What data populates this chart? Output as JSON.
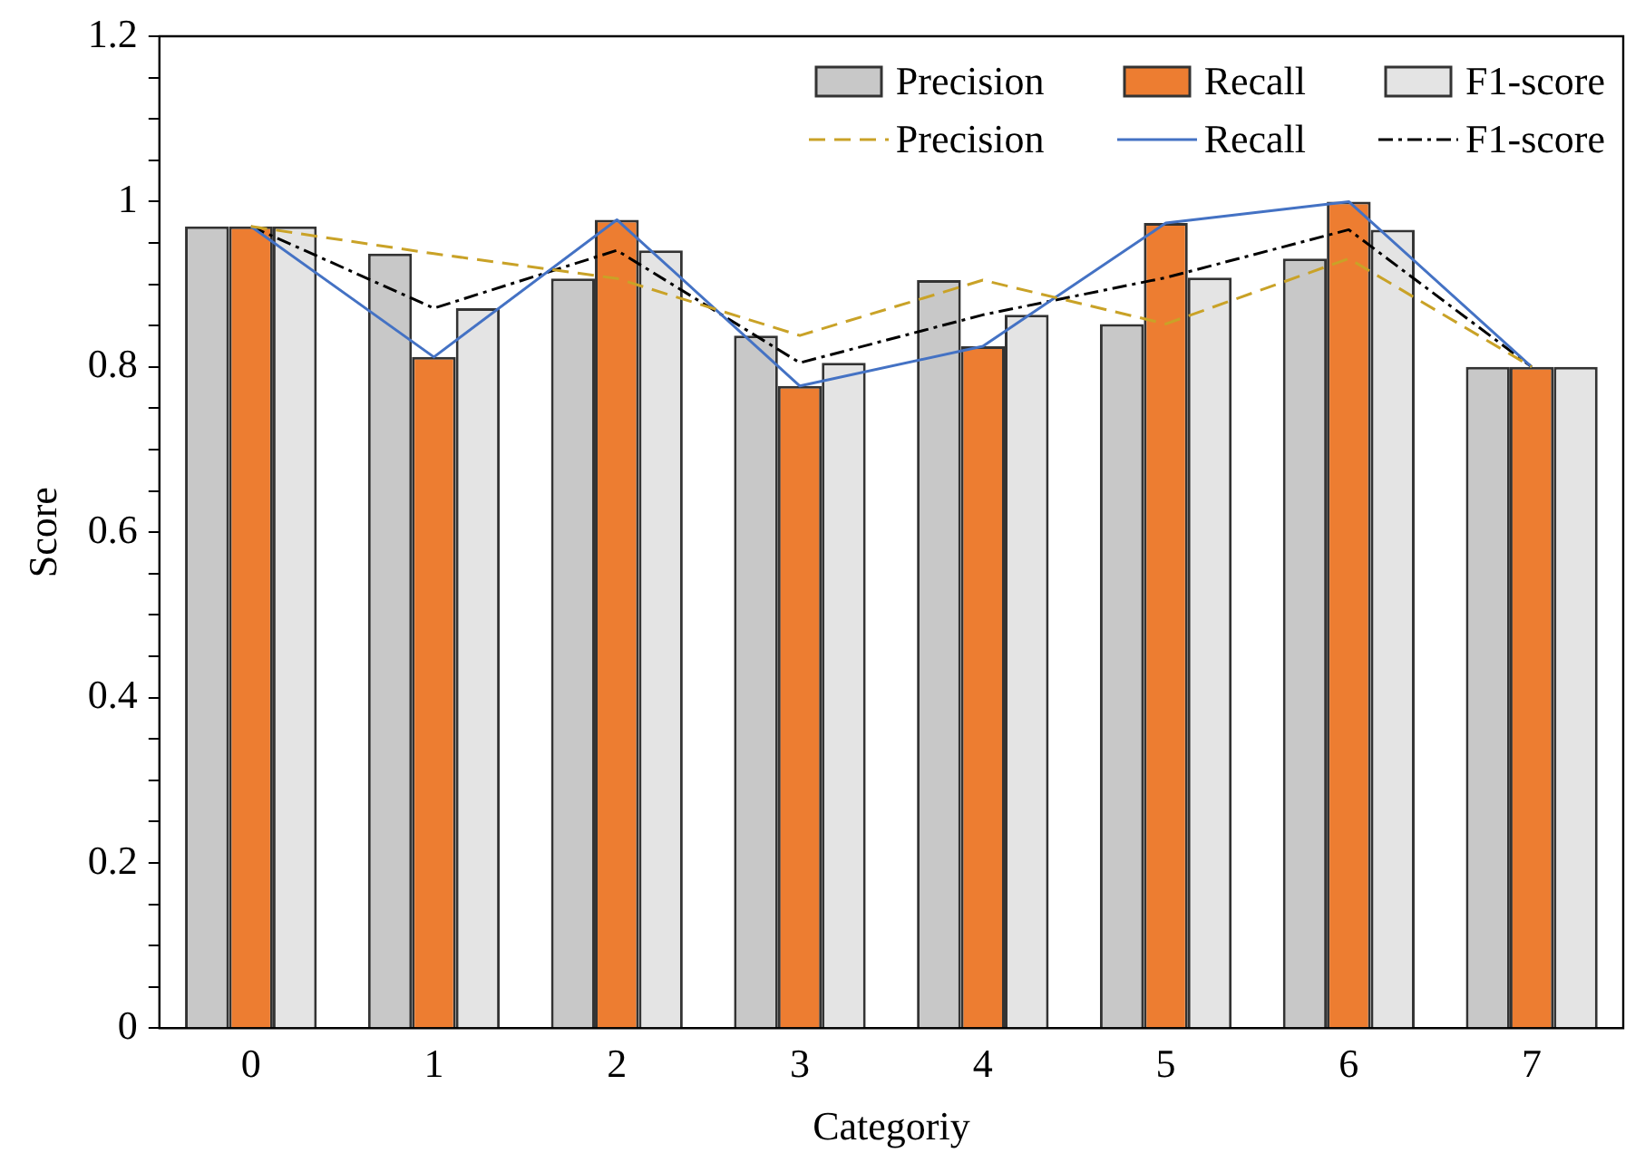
{
  "chart_data": {
    "type": "bar",
    "xlabel": "Categoriy",
    "ylabel": "Score",
    "categories": [
      "0",
      "1",
      "2",
      "3",
      "4",
      "5",
      "6",
      "7"
    ],
    "series": [
      {
        "name": "Precision",
        "color": "#c8c8c8",
        "values": [
          0.97,
          0.937,
          0.907,
          0.838,
          0.905,
          0.852,
          0.931,
          0.8
        ]
      },
      {
        "name": "Recall",
        "color": "#ed7d31",
        "values": [
          0.97,
          0.812,
          0.978,
          0.777,
          0.825,
          0.974,
          1.0,
          0.8
        ]
      },
      {
        "name": "F1-score",
        "color": "#e4e4e4",
        "values": [
          0.97,
          0.871,
          0.941,
          0.805,
          0.863,
          0.908,
          0.966,
          0.8
        ]
      },
      {
        "name": "Precision",
        "type": "line",
        "color": "#c9a227",
        "line_style": "dashed",
        "values": [
          0.97,
          0.937,
          0.907,
          0.838,
          0.905,
          0.852,
          0.931,
          0.8
        ]
      },
      {
        "name": "Recall",
        "type": "line",
        "color": "#4472c4",
        "line_style": "solid",
        "values": [
          0.97,
          0.812,
          0.978,
          0.777,
          0.825,
          0.974,
          1.0,
          0.8
        ]
      },
      {
        "name": "F1-score",
        "type": "line",
        "color": "#000000",
        "line_style": "dotted",
        "values": [
          0.97,
          0.871,
          0.941,
          0.805,
          0.863,
          0.908,
          0.966,
          0.8
        ]
      }
    ],
    "ylim": [
      0,
      1.2
    ],
    "yticks": [
      0,
      {
        "value": 0.05,
        "label": null
      },
      {
        "value": 0.1,
        "label": null
      },
      {
        "value": 0.15,
        "label": null
      },
      0.2,
      {
        "value": 0.25,
        "label": null
      },
      {
        "value": 0.3,
        "label": null
      },
      {
        "value": 0.35,
        "label": null
      },
      0.4,
      {
        "value": 0.45,
        "label": null
      },
      {
        "value": 0.5,
        "label": null
      },
      {
        "value": 0.55,
        "label": null
      },
      0.6,
      {
        "value": 0.65,
        "label": null
      },
      {
        "value": 0.7,
        "label": null
      },
      {
        "value": 0.75,
        "label": null
      },
      0.8,
      {
        "value": 0.85,
        "label": null
      },
      {
        "value": 0.9,
        "label": null
      },
      {
        "value": 0.95,
        "label": null
      },
      1,
      {
        "value": 1.05,
        "label": null
      },
      {
        "value": 1.1,
        "label": null
      },
      {
        "value": 1.15,
        "label": null
      },
      1.2
    ],
    "grid": false,
    "legend": "top right",
    "marker": "none"
  }
}
